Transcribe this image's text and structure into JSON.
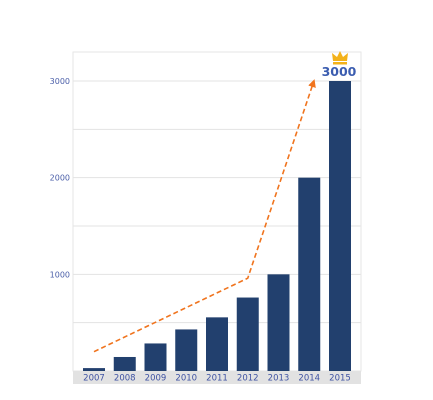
{
  "chart_data": {
    "type": "bar",
    "categories": [
      "2007",
      "2008",
      "2009",
      "2010",
      "2011",
      "2012",
      "2013",
      "2014",
      "2015"
    ],
    "values": [
      30,
      145,
      285,
      430,
      555,
      760,
      1000,
      2000,
      3000
    ],
    "ylim": [
      0,
      3300
    ],
    "yticks": [
      1000,
      2000,
      3000
    ],
    "grid": true,
    "legend": "none",
    "annotation": {
      "label": "3000",
      "icon": "crown-icon",
      "category": "2015",
      "trend_arrow": {
        "style": "dashed",
        "color": "#f0741e",
        "points": [
          {
            "x": "2007",
            "y": 200
          },
          {
            "x": "2012",
            "y": 960
          },
          {
            "x": "2014",
            "y": 2980
          }
        ]
      }
    },
    "colors": {
      "bar": "#22406e",
      "grid": "#e3e3e3",
      "axis_strip": "#e2e2e2",
      "tick_label": "#4a5ea8",
      "peak_label": "#3b5db0",
      "crown": "#f3b21a"
    }
  }
}
